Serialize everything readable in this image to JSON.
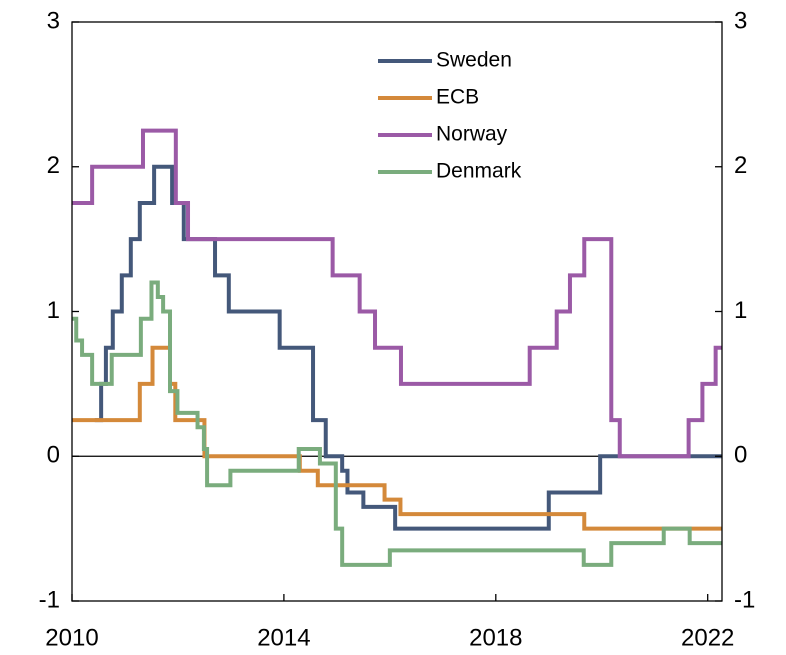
{
  "chart_data": {
    "type": "line",
    "step": "post",
    "xlim": [
      2010,
      2022.27
    ],
    "xticks": [
      2010,
      2014,
      2018,
      2022
    ],
    "ylim": [
      -1,
      3
    ],
    "yticks": [
      3,
      2,
      1,
      0,
      -1
    ],
    "y2lim": [
      -1,
      3
    ],
    "y2ticks": [
      3,
      2,
      1,
      0,
      -1
    ],
    "legend": "top",
    "series": [
      {
        "name": "Sweden",
        "color": "#44587a",
        "x": [
          2010.43,
          2010.55,
          2010.64,
          2010.77,
          2010.94,
          2011.11,
          2011.28,
          2011.55,
          2011.89,
          2012.11,
          2012.7,
          2012.96,
          2013.92,
          2014.55,
          2014.79,
          2015.1,
          2015.2,
          2015.5,
          2016.1,
          2019.0,
          2019.97
        ],
        "values": [
          0.25,
          0.5,
          0.75,
          1.0,
          1.25,
          1.5,
          1.75,
          2.0,
          1.75,
          1.5,
          1.25,
          1.0,
          0.75,
          0.25,
          0,
          -0.1,
          -0.25,
          -0.35,
          -0.5,
          -0.25,
          0
        ]
      },
      {
        "name": "ECB",
        "color": "#d4893a",
        "x": [
          2010,
          2011.28,
          2011.52,
          2011.85,
          2011.95,
          2012.5,
          2014.3,
          2014.64,
          2015.9,
          2016.2,
          2019.67
        ],
        "values": [
          0.25,
          0.5,
          0.75,
          0.5,
          0.25,
          0,
          -0.1,
          -0.2,
          -0.3,
          -0.4,
          -0.5
        ]
      },
      {
        "name": "Norway",
        "color": "#9b5aa6",
        "x": [
          2010,
          2010.38,
          2011.34,
          2011.96,
          2012.19,
          2014.92,
          2015.43,
          2015.72,
          2016.21,
          2018.64,
          2019.15,
          2019.4,
          2019.67,
          2020.18,
          2020.34,
          2021.64,
          2021.9,
          2022.15
        ],
        "values": [
          1.75,
          2.0,
          2.25,
          1.75,
          1.5,
          1.25,
          1.0,
          0.75,
          0.5,
          0.75,
          1.0,
          1.25,
          1.5,
          0.25,
          0,
          0.25,
          0.5,
          0.75
        ]
      },
      {
        "name": "Denmark",
        "color": "#7aac7d",
        "x": [
          2010,
          2010.08,
          2010.19,
          2010.38,
          2010.75,
          2011.3,
          2011.5,
          2011.62,
          2011.72,
          2011.85,
          2011.99,
          2012.37,
          2012.49,
          2012.55,
          2012.99,
          2014.28,
          2014.68,
          2014.98,
          2015.1,
          2016.0,
          2019.66,
          2020.18,
          2021.17,
          2021.66
        ],
        "values": [
          0.95,
          0.8,
          0.7,
          0.5,
          0.7,
          0.95,
          1.2,
          1.1,
          1.0,
          0.45,
          0.3,
          0.2,
          0.05,
          -0.2,
          -0.1,
          0.05,
          -0.05,
          -0.5,
          -0.75,
          -0.65,
          -0.75,
          -0.6,
          -0.5,
          -0.6
        ]
      }
    ]
  }
}
